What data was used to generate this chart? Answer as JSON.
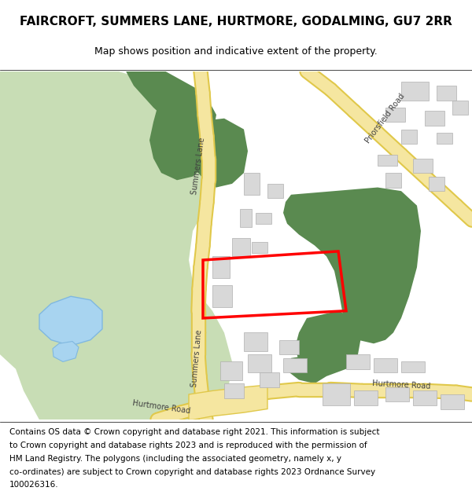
{
  "title": "FAIRCROFT, SUMMERS LANE, HURTMORE, GODALMING, GU7 2RR",
  "subtitle": "Map shows position and indicative extent of the property.",
  "footer_lines": [
    "Contains OS data © Crown copyright and database right 2021. This information is subject",
    "to Crown copyright and database rights 2023 and is reproduced with the permission of",
    "HM Land Registry. The polygons (including the associated geometry, namely x, y",
    "co-ordinates) are subject to Crown copyright and database rights 2023 Ordnance Survey",
    "100026316."
  ],
  "map_bg": "#ffffff",
  "green_light": "#c8ddb5",
  "green_dark": "#5a8a50",
  "road_color": "#f5e6a0",
  "road_border": "#e0c84a",
  "building_color": "#d8d8d8",
  "building_border": "#b0b0b0",
  "water_color": "#a8d4f0",
  "water_border": "#80b8e0",
  "plot_color": "#ff0000",
  "title_fontsize": 11,
  "subtitle_fontsize": 9,
  "footer_fontsize": 7.5,
  "label_color": "#404040",
  "label_fontsize": 7
}
